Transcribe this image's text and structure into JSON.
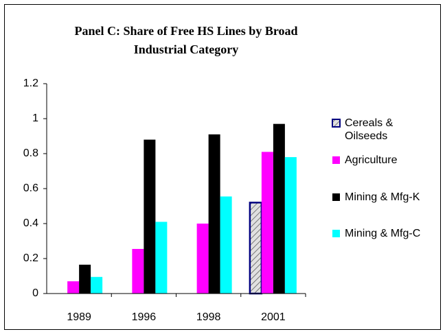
{
  "chart_data": {
    "type": "bar",
    "title": "Panel C: Share of Free HS Lines by Broad Industrial Category",
    "categories": [
      "1989",
      "1996",
      "1998",
      "2001"
    ],
    "series": [
      {
        "name": "Cereals & Oilseeds",
        "color": "#000080",
        "values": [
          null,
          null,
          null,
          0.52
        ]
      },
      {
        "name": "Agriculture",
        "color": "#ff00ff",
        "values": [
          0.07,
          0.255,
          0.4,
          0.81
        ]
      },
      {
        "name": "Mining & Mfg-K",
        "color": "#000000",
        "values": [
          0.165,
          0.88,
          0.91,
          0.97
        ]
      },
      {
        "name": "Mining & Mfg-C",
        "color": "#00ffff",
        "values": [
          0.095,
          0.41,
          0.555,
          0.78
        ]
      }
    ],
    "ylim": [
      0,
      1.2
    ],
    "yticks": [
      0,
      {
        "value": 0.2,
        "label": "0.2"
      },
      {
        "value": 0.4,
        "label": "0.4"
      },
      {
        "value": 0.6,
        "label": "0.6"
      },
      {
        "value": 0.8,
        "label": "0.8"
      },
      1,
      {
        "value": 1.2,
        "label": "1.2"
      }
    ],
    "legend": "right"
  }
}
